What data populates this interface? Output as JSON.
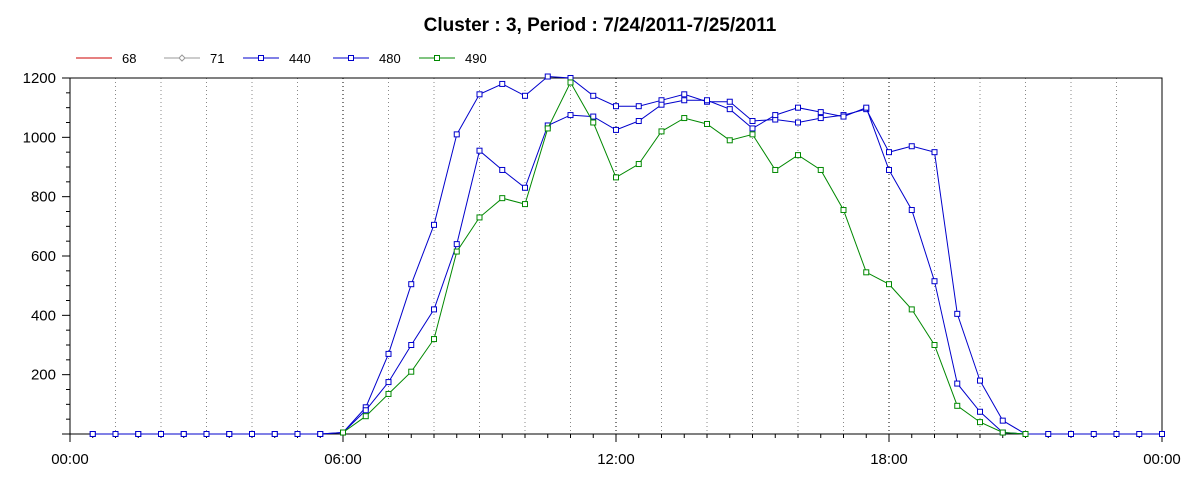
{
  "chart_data": {
    "type": "line",
    "title": "Cluster : 3, Period : 7/24/2011-7/25/2011",
    "xlabel": "",
    "ylabel": "",
    "x_unit": "hours",
    "x_ticks": [
      {
        "value": 0,
        "label": "00:00"
      },
      {
        "value": 6,
        "label": "06:00"
      },
      {
        "value": 12,
        "label": "12:00"
      },
      {
        "value": 18,
        "label": "18:00"
      },
      {
        "value": 24,
        "label": "00:00"
      }
    ],
    "y_ticks": [
      200,
      400,
      600,
      800,
      1000,
      1200
    ],
    "xlim": [
      0,
      24
    ],
    "ylim": [
      0,
      1200
    ],
    "grid": "vertical dotted",
    "legend_position": "top-left",
    "colors": {
      "s68": "#cc0000",
      "s71": "#999999",
      "s440": "#0000cc",
      "s480": "#0000cc",
      "s490": "#008800"
    },
    "series": [
      {
        "name": "68",
        "color": "#cc0000",
        "marker": "none",
        "points": []
      },
      {
        "name": "71",
        "color": "#999999",
        "marker": "diamond",
        "points": []
      },
      {
        "name": "440",
        "color": "#0000cc",
        "marker": "square",
        "points": [
          [
            0.5,
            0
          ],
          [
            1,
            0
          ],
          [
            1.5,
            0
          ],
          [
            2,
            0
          ],
          [
            2.5,
            0
          ],
          [
            3,
            0
          ],
          [
            3.5,
            0
          ],
          [
            4,
            0
          ],
          [
            4.5,
            0
          ],
          [
            5,
            0
          ],
          [
            5.5,
            0
          ],
          [
            6,
            5
          ],
          [
            6.5,
            90
          ],
          [
            7,
            270
          ],
          [
            7.5,
            505
          ],
          [
            8,
            705
          ],
          [
            8.5,
            1010
          ],
          [
            9,
            1145
          ],
          [
            9.5,
            1180
          ],
          [
            10,
            1140
          ],
          [
            10.5,
            1205
          ],
          [
            11,
            1200
          ],
          [
            11.5,
            1140
          ],
          [
            12,
            1105
          ],
          [
            12.5,
            1105
          ],
          [
            13,
            1125
          ],
          [
            13.5,
            1145
          ],
          [
            14,
            1120
          ],
          [
            14.5,
            1120
          ],
          [
            15,
            1055
          ],
          [
            15.5,
            1060
          ],
          [
            16,
            1050
          ],
          [
            16.5,
            1065
          ],
          [
            17,
            1075
          ],
          [
            17.5,
            1095
          ],
          [
            18,
            950
          ],
          [
            18.5,
            970
          ],
          [
            19,
            950
          ],
          [
            19.5,
            405
          ],
          [
            20,
            180
          ],
          [
            20.5,
            45
          ],
          [
            21,
            0
          ],
          [
            21.5,
            0
          ],
          [
            22,
            0
          ],
          [
            22.5,
            0
          ],
          [
            23,
            0
          ],
          [
            23.5,
            0
          ],
          [
            24,
            0
          ]
        ]
      },
      {
        "name": "480",
        "color": "#0000cc",
        "marker": "square",
        "points": [
          [
            0.5,
            0
          ],
          [
            1,
            0
          ],
          [
            1.5,
            0
          ],
          [
            2,
            0
          ],
          [
            2.5,
            0
          ],
          [
            3,
            0
          ],
          [
            3.5,
            0
          ],
          [
            4,
            0
          ],
          [
            4.5,
            0
          ],
          [
            5,
            0
          ],
          [
            5.5,
            0
          ],
          [
            6,
            5
          ],
          [
            6.5,
            80
          ],
          [
            7,
            175
          ],
          [
            7.5,
            300
          ],
          [
            8,
            420
          ],
          [
            8.5,
            640
          ],
          [
            9,
            955
          ],
          [
            9.5,
            890
          ],
          [
            10,
            830
          ],
          [
            10.5,
            1040
          ],
          [
            11,
            1075
          ],
          [
            11.5,
            1070
          ],
          [
            12,
            1025
          ],
          [
            12.5,
            1055
          ],
          [
            13,
            1110
          ],
          [
            13.5,
            1125
          ],
          [
            14,
            1125
          ],
          [
            14.5,
            1095
          ],
          [
            15,
            1030
          ],
          [
            15.5,
            1075
          ],
          [
            16,
            1100
          ],
          [
            16.5,
            1085
          ],
          [
            17,
            1070
          ],
          [
            17.5,
            1100
          ],
          [
            18,
            890
          ],
          [
            18.5,
            755
          ],
          [
            19,
            515
          ],
          [
            19.5,
            170
          ],
          [
            20,
            75
          ],
          [
            20.5,
            5
          ],
          [
            21,
            0
          ]
        ]
      },
      {
        "name": "490",
        "color": "#008800",
        "marker": "square",
        "points": [
          [
            6,
            5
          ],
          [
            6.5,
            60
          ],
          [
            7,
            135
          ],
          [
            7.5,
            210
          ],
          [
            8,
            320
          ],
          [
            8.5,
            615
          ],
          [
            9,
            730
          ],
          [
            9.5,
            795
          ],
          [
            10,
            775
          ],
          [
            10.5,
            1030
          ],
          [
            11,
            1185
          ],
          [
            11.5,
            1050
          ],
          [
            12,
            865
          ],
          [
            12.5,
            910
          ],
          [
            13,
            1020
          ],
          [
            13.5,
            1065
          ],
          [
            14,
            1045
          ],
          [
            14.5,
            990
          ],
          [
            15,
            1010
          ],
          [
            15.5,
            890
          ],
          [
            16,
            940
          ],
          [
            16.5,
            890
          ],
          [
            17,
            755
          ],
          [
            17.5,
            545
          ],
          [
            18,
            505
          ],
          [
            18.5,
            420
          ],
          [
            19,
            300
          ],
          [
            19.5,
            95
          ],
          [
            20,
            40
          ],
          [
            20.5,
            5
          ],
          [
            21,
            0
          ]
        ]
      }
    ]
  }
}
